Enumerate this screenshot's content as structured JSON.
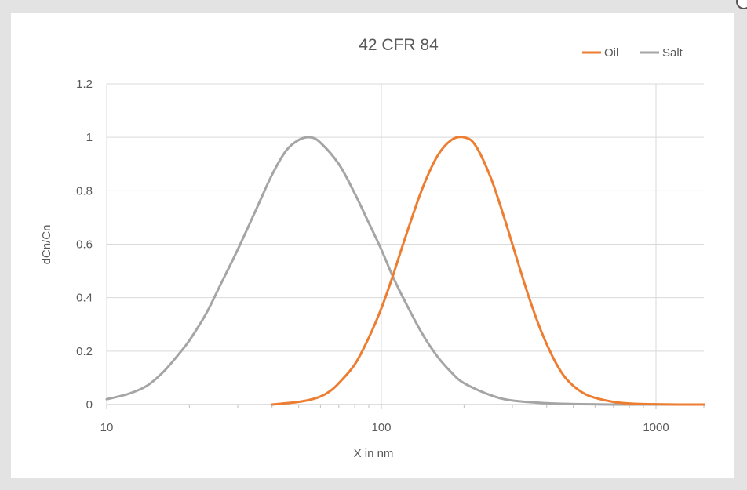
{
  "chart_data": {
    "type": "line",
    "title": "42 CFR 84",
    "xlabel": "X in nm",
    "ylabel": "dCn/Cn",
    "x_scale": "log",
    "xlim": [
      10,
      1500
    ],
    "ylim": [
      0,
      1.2
    ],
    "x_ticks": [
      10,
      100,
      1000
    ],
    "x_tick_labels": [
      "10",
      "100",
      "1000"
    ],
    "y_ticks": [
      0,
      0.2,
      0.4,
      0.6,
      0.8,
      1.0,
      1.2
    ],
    "y_tick_labels": [
      "0",
      "0.2",
      "0.4",
      "0.6",
      "0.8",
      "1",
      "1.2"
    ],
    "grid": true,
    "legend_position": "top-right",
    "series": [
      {
        "name": "Oil",
        "color": "#ed7d31",
        "x": [
          40,
          45,
          50,
          55,
          60,
          65,
          70,
          80,
          90,
          100,
          110,
          120,
          140,
          160,
          180,
          200,
          220,
          250,
          280,
          300,
          340,
          380,
          420,
          460,
          500,
          550,
          600,
          700,
          800,
          900,
          1000,
          1200,
          1500
        ],
        "y": [
          0.0,
          0.005,
          0.01,
          0.018,
          0.03,
          0.05,
          0.08,
          0.15,
          0.25,
          0.36,
          0.48,
          0.6,
          0.8,
          0.93,
          0.99,
          1.0,
          0.97,
          0.85,
          0.7,
          0.6,
          0.42,
          0.28,
          0.18,
          0.11,
          0.07,
          0.04,
          0.025,
          0.01,
          0.004,
          0.002,
          0.001,
          0.0,
          0.0
        ]
      },
      {
        "name": "Salt",
        "color": "#a5a5a5",
        "x": [
          10,
          12,
          14,
          16,
          18,
          20,
          23,
          26,
          30,
          35,
          40,
          45,
          50,
          55,
          60,
          70,
          80,
          90,
          100,
          110,
          120,
          140,
          160,
          180,
          200,
          250,
          300,
          400,
          500,
          700,
          1000,
          1500
        ],
        "y": [
          0.02,
          0.04,
          0.07,
          0.12,
          0.18,
          0.24,
          0.34,
          0.45,
          0.58,
          0.73,
          0.86,
          0.95,
          0.99,
          1.0,
          0.98,
          0.9,
          0.79,
          0.68,
          0.58,
          0.48,
          0.4,
          0.27,
          0.18,
          0.12,
          0.08,
          0.035,
          0.015,
          0.005,
          0.002,
          0.0,
          0.0,
          0.0
        ]
      }
    ]
  }
}
